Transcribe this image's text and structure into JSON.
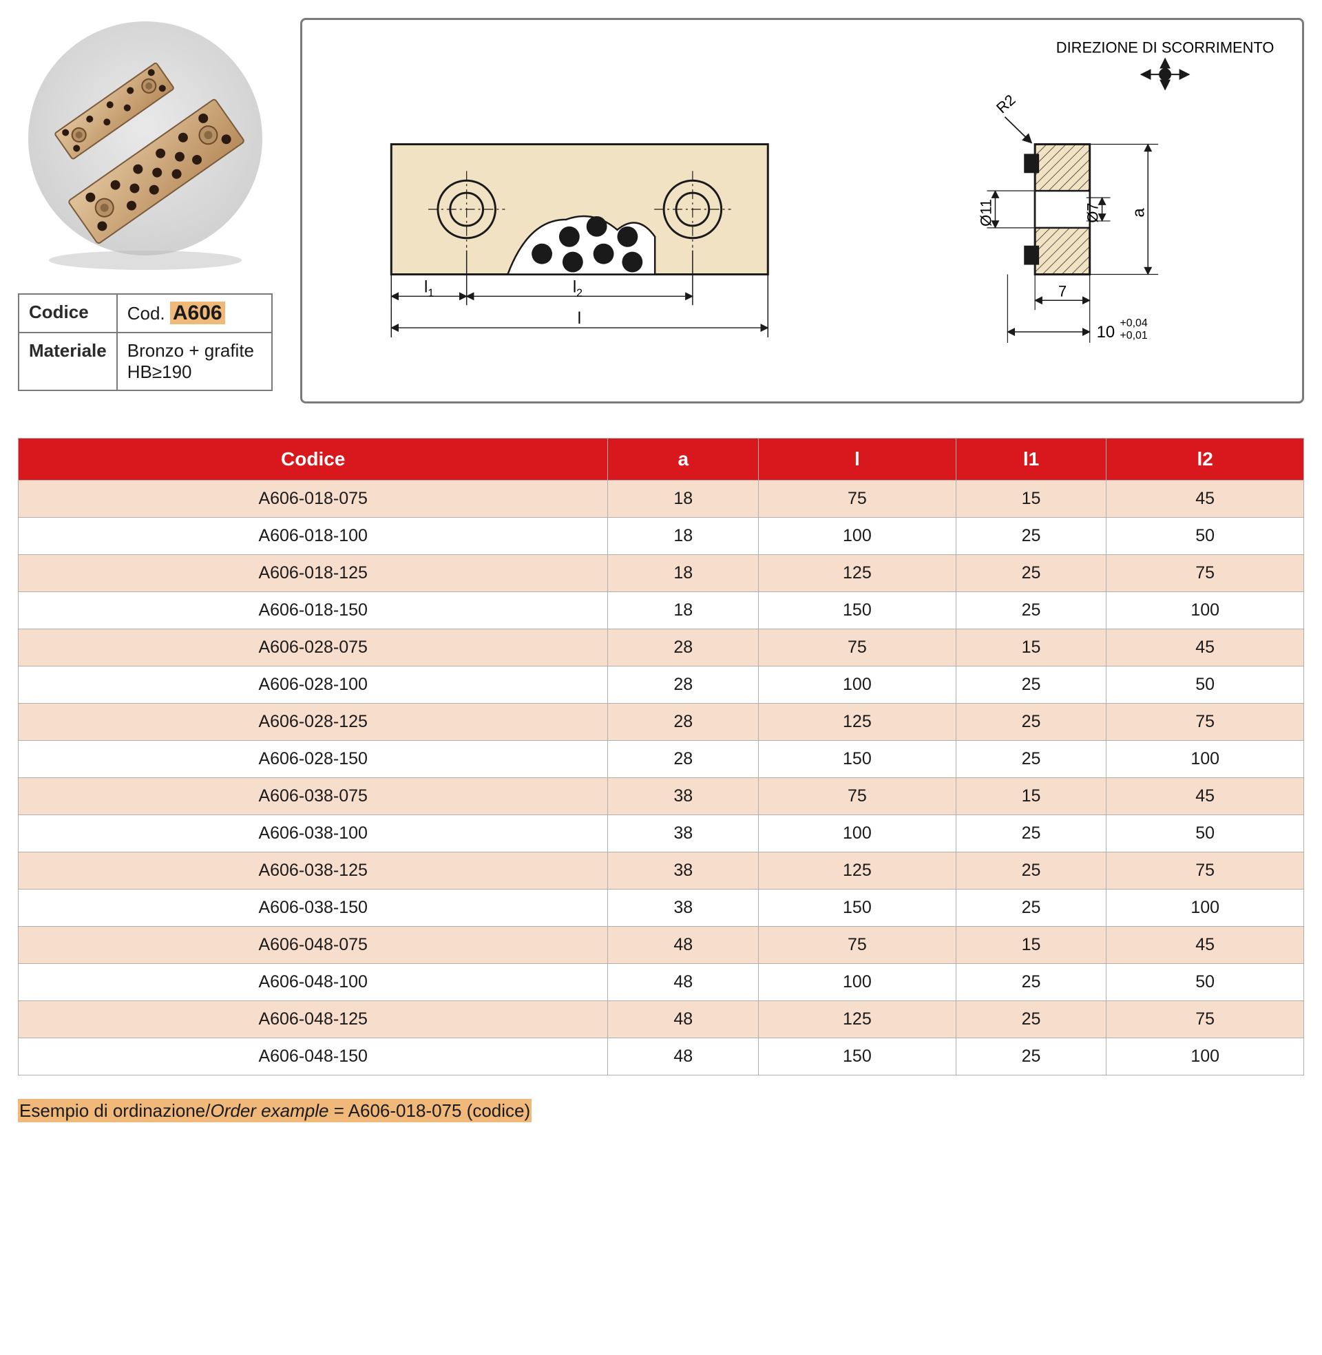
{
  "product_photo": {
    "circle_bg": "#d9d9d9",
    "plate_fill": "#caa276",
    "plate_edge": "#7a5a3a",
    "dot_fill": "#2a1a10"
  },
  "info": {
    "code_label": "Codice",
    "code_prefix": "Cod. ",
    "code_value": "A606",
    "material_label": "Materiale",
    "material_line1": "Bronzo + grafite",
    "material_line2": "HB≥190"
  },
  "drawing": {
    "direction_label": "DIREZIONE DI SCORRIMENTO",
    "plate_fill": "#f2e2c4",
    "plate_stroke": "#1a1a1a",
    "hatch_fill": "#c9a97a",
    "graphite_dot": "#1a1a1a",
    "dim_l1": "l",
    "dim_l1_sub": "1",
    "dim_l2": "l",
    "dim_l2_sub": "2",
    "dim_l": "l",
    "dim_R2": "R2",
    "dim_d11": "Ø11",
    "dim_d7": "Ø7",
    "dim_a": "a",
    "dim_7": "7",
    "dim_10": "10",
    "tol_top": "+0,04",
    "tol_bot": "+0,01"
  },
  "table": {
    "header_bg": "#d8181c",
    "header_fg": "#ffffff",
    "row_odd_bg": "#f7ddcc",
    "row_even_bg": "#ffffff",
    "border_color": "#b0b0b0",
    "columns": [
      "Codice",
      "a",
      "l",
      "l1",
      "l2"
    ],
    "rows": [
      [
        "A606-018-075",
        "18",
        "75",
        "15",
        "45"
      ],
      [
        "A606-018-100",
        "18",
        "100",
        "25",
        "50"
      ],
      [
        "A606-018-125",
        "18",
        "125",
        "25",
        "75"
      ],
      [
        "A606-018-150",
        "18",
        "150",
        "25",
        "100"
      ],
      [
        "A606-028-075",
        "28",
        "75",
        "15",
        "45"
      ],
      [
        "A606-028-100",
        "28",
        "100",
        "25",
        "50"
      ],
      [
        "A606-028-125",
        "28",
        "125",
        "25",
        "75"
      ],
      [
        "A606-028-150",
        "28",
        "150",
        "25",
        "100"
      ],
      [
        "A606-038-075",
        "38",
        "75",
        "15",
        "45"
      ],
      [
        "A606-038-100",
        "38",
        "100",
        "25",
        "50"
      ],
      [
        "A606-038-125",
        "38",
        "125",
        "25",
        "75"
      ],
      [
        "A606-038-150",
        "38",
        "150",
        "25",
        "100"
      ],
      [
        "A606-048-075",
        "48",
        "75",
        "15",
        "45"
      ],
      [
        "A606-048-100",
        "48",
        "100",
        "25",
        "50"
      ],
      [
        "A606-048-125",
        "48",
        "125",
        "25",
        "75"
      ],
      [
        "A606-048-150",
        "48",
        "150",
        "25",
        "100"
      ]
    ]
  },
  "order_example": {
    "highlight_bg": "#f0b97a",
    "text_plain": "Esempio di ordinazione/",
    "text_italic": "Order example",
    "text_rest": " = A606-018-075 (codice)"
  }
}
